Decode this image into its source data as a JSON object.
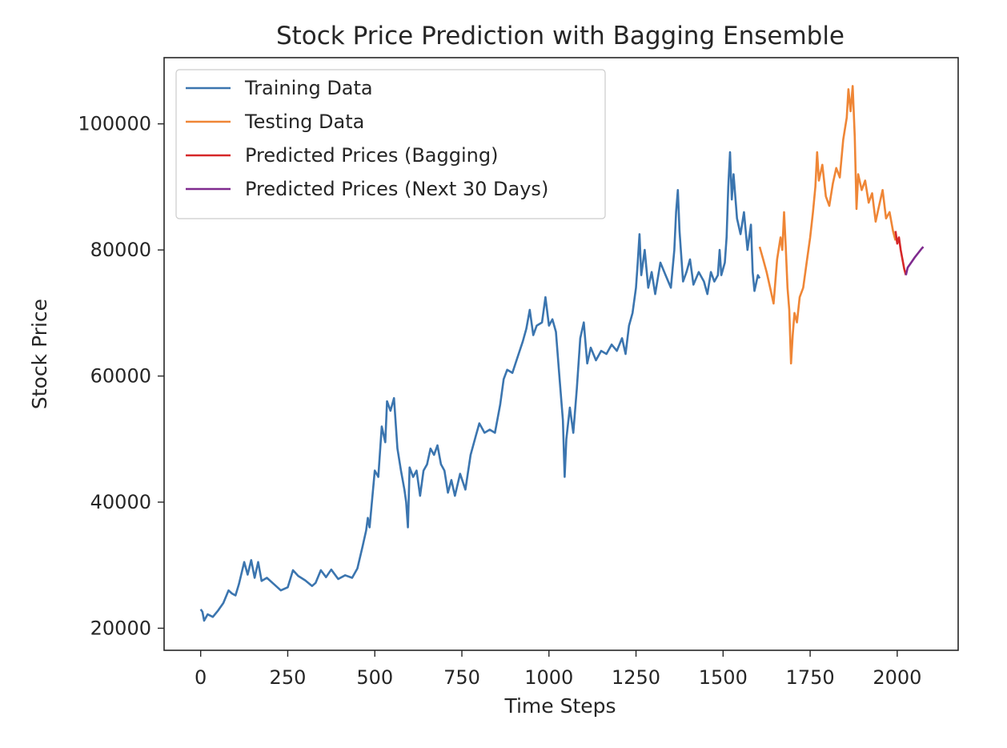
{
  "chart_data": {
    "type": "line",
    "title": "Stock Price Prediction with Bagging Ensemble",
    "xlabel": "Time Steps",
    "ylabel": "Stock Price",
    "xlim": [
      -105,
      2175
    ],
    "ylim": [
      16500,
      110500
    ],
    "xticks": [
      0,
      250,
      500,
      750,
      1000,
      1250,
      1500,
      1750,
      2000
    ],
    "xtick_labels": [
      "0",
      "250",
      "500",
      "750",
      "1000",
      "1250",
      "1500",
      "1750",
      "2000"
    ],
    "yticks": [
      20000,
      40000,
      60000,
      80000,
      100000
    ],
    "ytick_labels": [
      "20000",
      "40000",
      "60000",
      "80000",
      "100000"
    ],
    "grid": false,
    "legend_position": "upper-left",
    "series": [
      {
        "name": "Training Data",
        "color": "#3b75af",
        "points": [
          [
            0,
            23000
          ],
          [
            5,
            22600
          ],
          [
            10,
            21200
          ],
          [
            20,
            22200
          ],
          [
            35,
            21800
          ],
          [
            50,
            22800
          ],
          [
            65,
            24000
          ],
          [
            80,
            26000
          ],
          [
            90,
            25500
          ],
          [
            100,
            25200
          ],
          [
            110,
            27000
          ],
          [
            125,
            30500
          ],
          [
            135,
            28500
          ],
          [
            145,
            30800
          ],
          [
            155,
            28000
          ],
          [
            165,
            30500
          ],
          [
            175,
            27500
          ],
          [
            190,
            28000
          ],
          [
            210,
            27000
          ],
          [
            230,
            26000
          ],
          [
            250,
            26500
          ],
          [
            265,
            29200
          ],
          [
            280,
            28300
          ],
          [
            300,
            27600
          ],
          [
            320,
            26700
          ],
          [
            330,
            27200
          ],
          [
            345,
            29200
          ],
          [
            360,
            28100
          ],
          [
            375,
            29300
          ],
          [
            395,
            27800
          ],
          [
            415,
            28400
          ],
          [
            435,
            28000
          ],
          [
            450,
            29500
          ],
          [
            465,
            33000
          ],
          [
            475,
            35500
          ],
          [
            480,
            37500
          ],
          [
            485,
            36000
          ],
          [
            500,
            45000
          ],
          [
            510,
            44000
          ],
          [
            520,
            52000
          ],
          [
            530,
            49500
          ],
          [
            535,
            56000
          ],
          [
            545,
            54500
          ],
          [
            555,
            56500
          ],
          [
            565,
            48500
          ],
          [
            575,
            45000
          ],
          [
            585,
            42000
          ],
          [
            590,
            40000
          ],
          [
            595,
            36000
          ],
          [
            600,
            45500
          ],
          [
            610,
            44000
          ],
          [
            620,
            45000
          ],
          [
            630,
            41000
          ],
          [
            640,
            45000
          ],
          [
            650,
            46000
          ],
          [
            660,
            48500
          ],
          [
            670,
            47500
          ],
          [
            680,
            49000
          ],
          [
            690,
            46000
          ],
          [
            700,
            45000
          ],
          [
            710,
            41500
          ],
          [
            720,
            43500
          ],
          [
            730,
            41000
          ],
          [
            745,
            44500
          ],
          [
            760,
            42000
          ],
          [
            775,
            47500
          ],
          [
            790,
            50500
          ],
          [
            800,
            52500
          ],
          [
            815,
            51000
          ],
          [
            830,
            51500
          ],
          [
            845,
            51000
          ],
          [
            860,
            55500
          ],
          [
            870,
            59500
          ],
          [
            880,
            61000
          ],
          [
            895,
            60500
          ],
          [
            910,
            63000
          ],
          [
            925,
            65500
          ],
          [
            935,
            67500
          ],
          [
            945,
            70500
          ],
          [
            955,
            66500
          ],
          [
            965,
            68000
          ],
          [
            980,
            68500
          ],
          [
            990,
            72500
          ],
          [
            1000,
            68000
          ],
          [
            1010,
            69000
          ],
          [
            1020,
            67000
          ],
          [
            1030,
            60000
          ],
          [
            1040,
            53000
          ],
          [
            1045,
            44000
          ],
          [
            1050,
            50000
          ],
          [
            1060,
            55000
          ],
          [
            1070,
            51000
          ],
          [
            1080,
            58000
          ],
          [
            1090,
            66000
          ],
          [
            1100,
            68500
          ],
          [
            1110,
            62000
          ],
          [
            1120,
            64500
          ],
          [
            1135,
            62500
          ],
          [
            1150,
            64000
          ],
          [
            1165,
            63500
          ],
          [
            1180,
            65000
          ],
          [
            1195,
            64000
          ],
          [
            1210,
            66000
          ],
          [
            1220,
            63500
          ],
          [
            1230,
            68000
          ],
          [
            1240,
            70000
          ],
          [
            1250,
            74000
          ],
          [
            1255,
            78000
          ],
          [
            1260,
            82500
          ],
          [
            1265,
            76000
          ],
          [
            1275,
            80000
          ],
          [
            1285,
            74000
          ],
          [
            1295,
            76500
          ],
          [
            1305,
            73000
          ],
          [
            1320,
            78000
          ],
          [
            1335,
            76000
          ],
          [
            1350,
            74000
          ],
          [
            1360,
            80000
          ],
          [
            1365,
            86000
          ],
          [
            1370,
            89500
          ],
          [
            1375,
            83000
          ],
          [
            1385,
            75000
          ],
          [
            1395,
            76500
          ],
          [
            1405,
            78500
          ],
          [
            1415,
            74500
          ],
          [
            1430,
            76500
          ],
          [
            1445,
            75000
          ],
          [
            1455,
            73000
          ],
          [
            1465,
            76500
          ],
          [
            1475,
            75000
          ],
          [
            1485,
            76000
          ],
          [
            1490,
            80000
          ],
          [
            1495,
            76000
          ],
          [
            1505,
            78000
          ],
          [
            1510,
            82000
          ],
          [
            1515,
            90000
          ],
          [
            1520,
            95500
          ],
          [
            1525,
            88000
          ],
          [
            1530,
            92000
          ],
          [
            1540,
            85000
          ],
          [
            1550,
            82500
          ],
          [
            1560,
            86000
          ],
          [
            1570,
            80000
          ],
          [
            1580,
            84000
          ],
          [
            1585,
            76500
          ],
          [
            1590,
            73500
          ],
          [
            1600,
            76000
          ],
          [
            1605,
            75500
          ]
        ]
      },
      {
        "name": "Testing Data",
        "color": "#ef8636",
        "points": [
          [
            1605,
            80500
          ],
          [
            1615,
            78500
          ],
          [
            1625,
            76500
          ],
          [
            1635,
            74000
          ],
          [
            1645,
            71500
          ],
          [
            1655,
            78500
          ],
          [
            1665,
            82000
          ],
          [
            1670,
            80000
          ],
          [
            1675,
            86000
          ],
          [
            1680,
            80500
          ],
          [
            1685,
            74000
          ],
          [
            1690,
            70500
          ],
          [
            1695,
            62000
          ],
          [
            1700,
            66500
          ],
          [
            1705,
            70000
          ],
          [
            1712,
            68500
          ],
          [
            1720,
            72500
          ],
          [
            1730,
            74000
          ],
          [
            1740,
            78000
          ],
          [
            1750,
            82000
          ],
          [
            1758,
            86000
          ],
          [
            1765,
            90000
          ],
          [
            1770,
            95500
          ],
          [
            1775,
            91000
          ],
          [
            1785,
            93500
          ],
          [
            1795,
            88500
          ],
          [
            1805,
            87000
          ],
          [
            1815,
            90500
          ],
          [
            1825,
            93000
          ],
          [
            1835,
            91500
          ],
          [
            1845,
            97500
          ],
          [
            1855,
            101000
          ],
          [
            1860,
            105500
          ],
          [
            1866,
            102000
          ],
          [
            1872,
            106000
          ],
          [
            1878,
            98000
          ],
          [
            1883,
            86500
          ],
          [
            1888,
            92000
          ],
          [
            1898,
            89500
          ],
          [
            1908,
            91000
          ],
          [
            1918,
            87500
          ],
          [
            1928,
            89000
          ],
          [
            1938,
            84500
          ],
          [
            1948,
            87000
          ],
          [
            1958,
            89500
          ],
          [
            1968,
            85000
          ],
          [
            1978,
            86000
          ],
          [
            1988,
            83000
          ],
          [
            1995,
            81500
          ]
        ]
      },
      {
        "name": "Predicted Prices (Bagging)",
        "color": "#d62728",
        "points": [
          [
            1995,
            83000
          ],
          [
            2000,
            81000
          ],
          [
            2005,
            82000
          ],
          [
            2010,
            80000
          ],
          [
            2015,
            78500
          ],
          [
            2020,
            77000
          ],
          [
            2025,
            76000
          ]
        ]
      },
      {
        "name": "Predicted Prices (Next 30 Days)",
        "color": "#7f2a8e",
        "points": [
          [
            2025,
            76000
          ],
          [
            2030,
            77200
          ],
          [
            2040,
            78000
          ],
          [
            2050,
            78800
          ],
          [
            2060,
            79500
          ],
          [
            2070,
            80200
          ],
          [
            2075,
            80500
          ]
        ]
      }
    ]
  }
}
